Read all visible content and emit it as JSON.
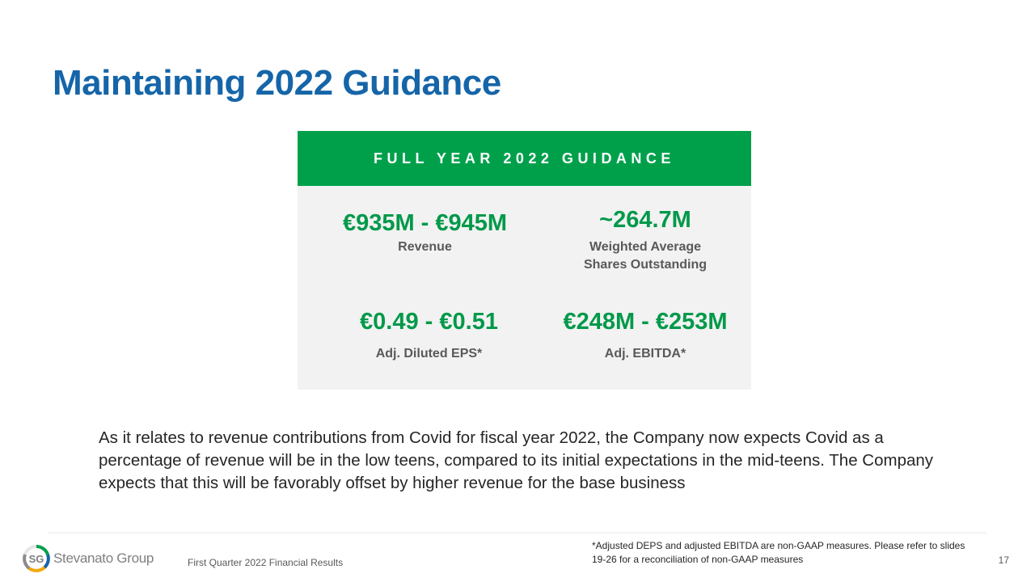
{
  "slide": {
    "title": "Maintaining 2022 Guidance",
    "guidance_card": {
      "header": "FULL YEAR 2022 GUIDANCE",
      "metrics": [
        {
          "value": "€935M - €945M",
          "label": "Revenue"
        },
        {
          "value": "~264.7M",
          "label_line1": "Weighted Average",
          "label_line2": "Shares Outstanding"
        },
        {
          "value": "€0.49 - €0.51",
          "label": "Adj. Diluted EPS*"
        },
        {
          "value": "€248M - €253M",
          "label": "Adj. EBITDA*"
        }
      ]
    },
    "body_text": "As it relates to revenue contributions from Covid for fiscal year 2022, the Company now expects Covid as a percentage of revenue will be in the low teens, compared to its initial expectations in the mid-teens. The Company expects that this will be favorably offset by higher revenue for the base business",
    "footer": {
      "logo_text": "Stevanato Group",
      "logo_initials": "SG",
      "presentation_title": "First Quarter 2022 Financial Results",
      "footnote": "*Adjusted DEPS and adjusted EBITDA are non-GAAP measures. Please refer to slides 19-26  for a reconciliation of non-GAAP measures",
      "page_number": "17"
    },
    "colors": {
      "title": "#1565a8",
      "header_bg": "#00a04b",
      "metric_value": "#00994a",
      "card_bg": "#f2f2f2"
    }
  }
}
